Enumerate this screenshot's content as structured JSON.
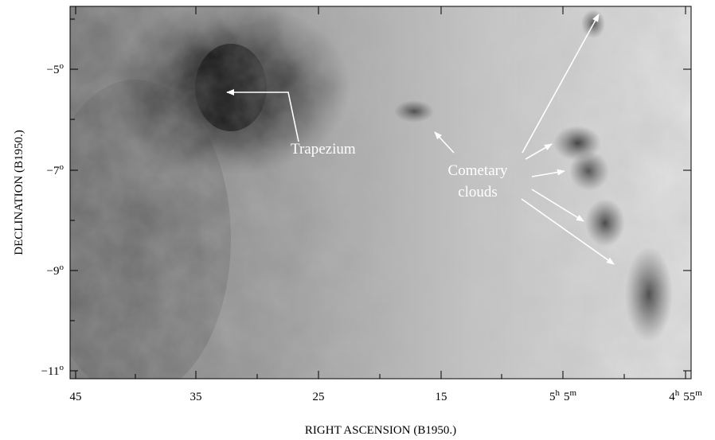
{
  "figure": {
    "x_axis": {
      "title": "RIGHT ASCENSION (B1950.)",
      "tick_labels": [
        [
          "45"
        ],
        [
          "35"
        ],
        [
          "25"
        ],
        [
          "15"
        ],
        [
          "5",
          "h",
          "5",
          "m"
        ],
        [
          "4",
          "h",
          "55",
          "m"
        ]
      ]
    },
    "y_axis": {
      "title": "DECLINATION (B1950.)",
      "tick_labels": [
        [
          "−5",
          "o"
        ],
        [
          "−7",
          "o"
        ],
        [
          "−9",
          "o"
        ],
        [
          "−11",
          "o"
        ]
      ]
    },
    "annotations": {
      "trapezium": "Trapezium",
      "cometary_clouds": [
        "Cometary",
        "clouds"
      ]
    }
  }
}
